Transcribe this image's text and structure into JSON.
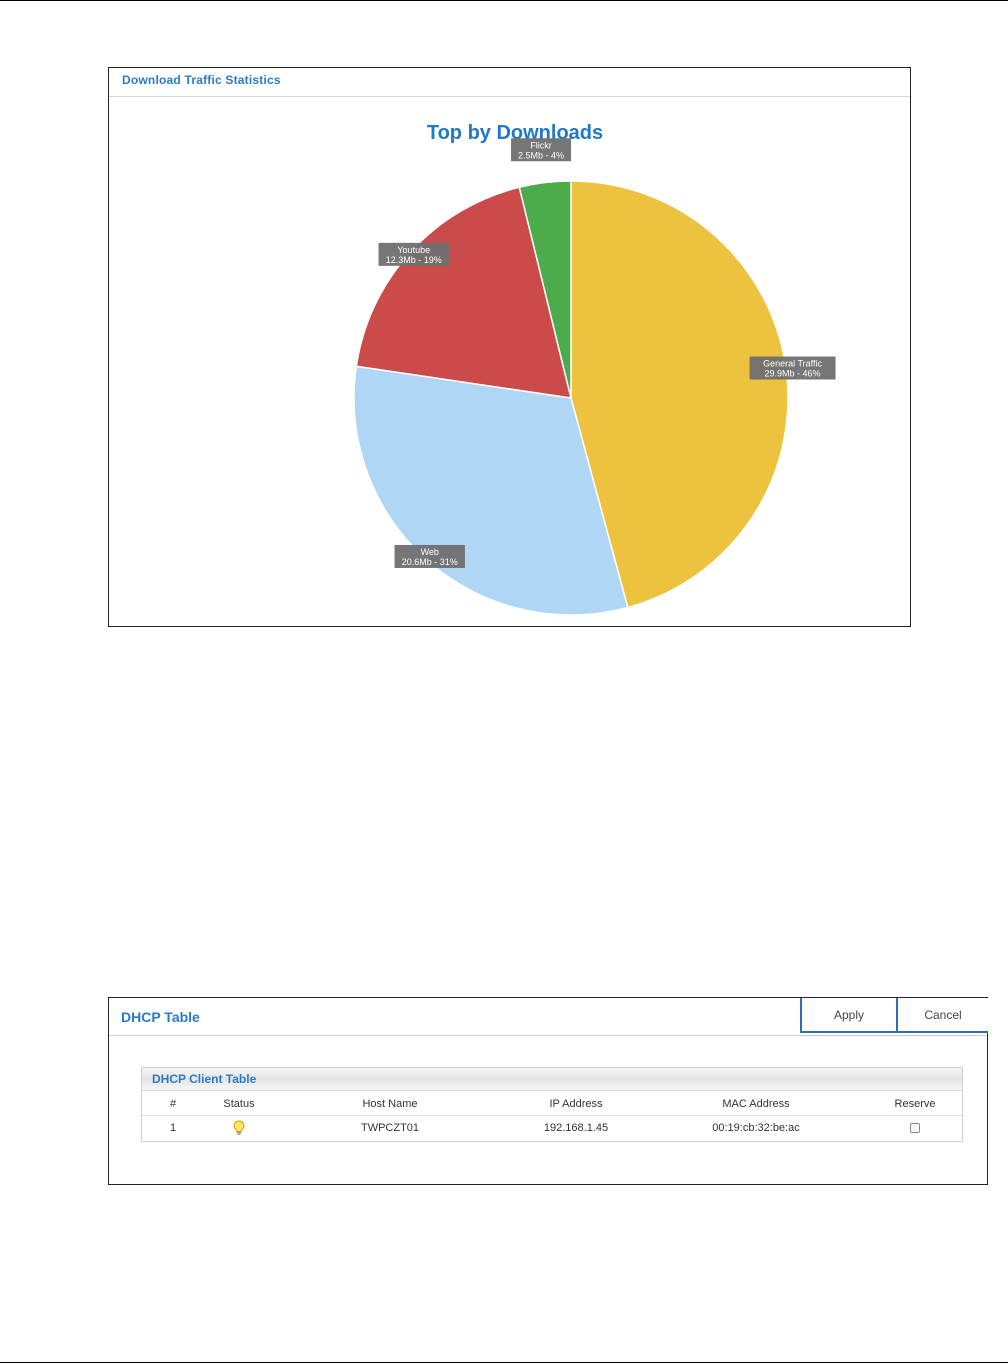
{
  "traffic_panel": {
    "title": "Download Traffic Statistics"
  },
  "chart_data": {
    "type": "pie",
    "title": "Top by Downloads",
    "slices": [
      {
        "name": "General Traffic",
        "value_label": "29.9Mb - 46%",
        "value": 29.9,
        "percent": 46,
        "color": "#ecc23f"
      },
      {
        "name": "Web",
        "value_label": "20.6Mb - 31%",
        "value": 20.6,
        "percent": 31,
        "color": "#b0d6f6"
      },
      {
        "name": "Youtube",
        "value_label": "12.3Mb - 19%",
        "value": 12.3,
        "percent": 19,
        "color": "#cb4b4a"
      },
      {
        "name": "Flickr",
        "value_label": "2.5Mb - 4%",
        "value": 2.5,
        "percent": 4,
        "color": "#4cab4a"
      }
    ]
  },
  "dhcp_panel": {
    "title": "DHCP Table",
    "apply_label": "Apply",
    "cancel_label": "Cancel",
    "client_table": {
      "title": "DHCP Client Table",
      "columns": [
        "#",
        "Status",
        "Host Name",
        "IP Address",
        "MAC Address",
        "Reserve"
      ],
      "rows": [
        {
          "index": "1",
          "status_icon": "lightbulb-icon",
          "host_name": "TWPCZT01",
          "ip_address": "192.168.1.45",
          "mac_address": "00:19:cb:32:be:ac",
          "reserve": false
        }
      ]
    }
  }
}
